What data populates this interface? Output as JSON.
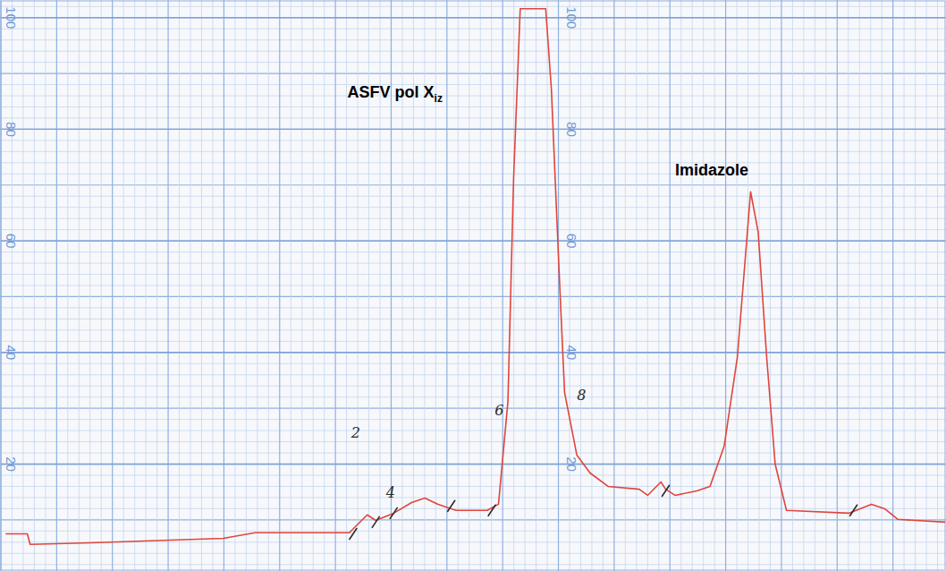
{
  "chart_data": {
    "type": "line",
    "x": [
      0.5,
      2.8,
      3.1,
      9.5,
      23.6,
      26.9,
      36.9,
      38.8,
      39.7,
      41.6,
      43.5,
      44.9,
      46.3,
      48.2,
      51.5,
      52.7,
      53.7,
      54.3,
      55.0,
      57.7,
      58.3,
      59.1,
      59.7,
      61.0,
      62.4,
      64.3,
      67.6,
      68.5,
      69.9,
      70.4,
      71.4,
      73.7,
      75.1,
      76.6,
      78.0,
      79.4,
      80.2,
      81.1,
      82.0,
      83.2,
      89.8,
      92.2,
      93.6,
      95.0,
      100.0
    ],
    "values": [
      7.5,
      7.5,
      5.6,
      5.9,
      6.7,
      7.7,
      7.7,
      10.9,
      9.9,
      11.2,
      13.1,
      13.9,
      12.8,
      11.7,
      11.7,
      12.8,
      31.2,
      71.2,
      101.6,
      101.6,
      87.2,
      55.2,
      32.8,
      21.6,
      18.4,
      16.0,
      15.5,
      14.4,
      16.8,
      15.5,
      14.4,
      15.2,
      16.0,
      23.2,
      39.2,
      68.8,
      61.6,
      39.2,
      20.0,
      11.7,
      11.2,
      12.8,
      12.0,
      10.1,
      9.6
    ],
    "color": "#e0453c",
    "xlim": [
      0,
      100
    ],
    "ylim": [
      1,
      103
    ],
    "yticks": [
      20,
      40,
      60,
      80,
      100
    ],
    "grid": true,
    "tick_labels": "y",
    "annotations": [
      {
        "text": "ASFV pol X",
        "subscript": "iz",
        "x": 36.7,
        "y": 85.6
      },
      {
        "text": "Imidazole",
        "x": 71.4,
        "y": 71.7
      },
      {
        "text": "2",
        "x": 37.1,
        "y": 24.8
      },
      {
        "text": "4",
        "x": 40.8,
        "y": 14.0
      },
      {
        "text": "6",
        "x": 52.3,
        "y": 28.8
      },
      {
        "text": "8",
        "x": 61.0,
        "y": 31.5
      }
    ],
    "fraction_marks": {
      "x": [
        37.3,
        39.7,
        41.6,
        47.7,
        52.0,
        70.4,
        90.3
      ],
      "y": [
        7.5,
        9.6,
        11.2,
        12.5,
        11.7,
        15.2,
        11.7
      ]
    }
  }
}
